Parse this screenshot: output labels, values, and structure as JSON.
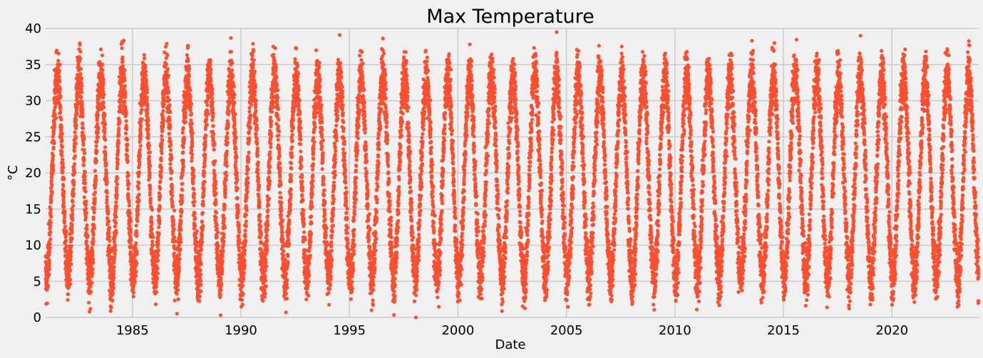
{
  "chart_data": {
    "type": "scatter",
    "title": "Max Temperature",
    "xlabel": "Date",
    "ylabel": "°C",
    "xlim": [
      1981.0,
      2024.0
    ],
    "ylim": [
      0,
      40
    ],
    "x_ticks": [
      1985,
      1990,
      1995,
      2000,
      2005,
      2010,
      2015,
      2020
    ],
    "x_tick_labels": [
      "1985",
      "1990",
      "1995",
      "2000",
      "2005",
      "2010",
      "2015",
      "2020"
    ],
    "y_ticks": [
      0,
      5,
      10,
      15,
      20,
      25,
      30,
      35,
      40
    ],
    "y_tick_labels": [
      "0",
      "5",
      "10",
      "15",
      "20",
      "25",
      "30",
      "35",
      "40"
    ],
    "grid": true,
    "series": [
      {
        "name": "Max Temperature",
        "color": "#fc4f30",
        "sampling": "daily",
        "seasonal_cycle": {
          "annual_peak_month": 7,
          "summer_typical_max": 34,
          "winter_typical_min": 6,
          "mean": 19.5
        },
        "yearly_extremes": [
          {
            "year": 1983,
            "max": 37.1,
            "min": 0.8
          },
          {
            "year": 1984,
            "max": 38.1,
            "min": 2.5
          },
          {
            "year": 1987,
            "max": 37.3,
            "min": 3.4
          },
          {
            "year": 1990,
            "max": 34.6,
            "min": 1.5
          },
          {
            "year": 1994,
            "max": 39.1,
            "min": 4.0
          },
          {
            "year": 1996,
            "max": 38.6,
            "min": 1.0
          },
          {
            "year": 2000,
            "max": 37.8,
            "min": 4.4
          },
          {
            "year": 2002,
            "max": 35.8,
            "min": 1.8
          },
          {
            "year": 2004,
            "max": 39.5,
            "min": 4.7
          },
          {
            "year": 2007,
            "max": 37.5,
            "min": 6.5
          },
          {
            "year": 2013,
            "max": 38.3,
            "min": 4.1
          },
          {
            "year": 2018,
            "max": 39.0,
            "min": 3.6
          },
          {
            "year": 2022,
            "max": 36.9,
            "min": 2.6
          },
          {
            "year": 2023,
            "max": 37.7,
            "min": 3.5
          }
        ]
      }
    ]
  }
}
